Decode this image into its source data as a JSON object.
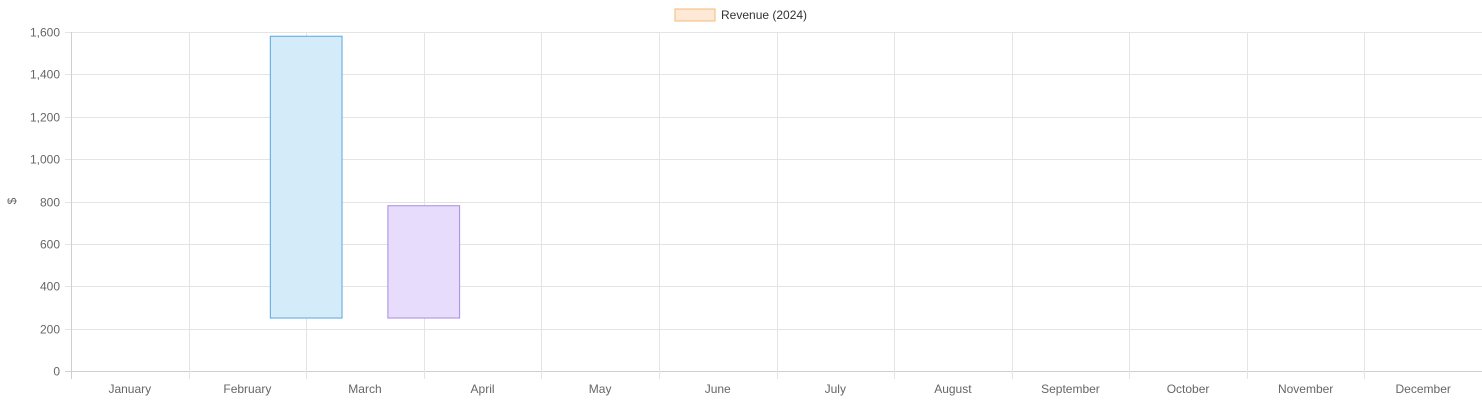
{
  "chart_data": {
    "type": "bar",
    "legend": {
      "label": "Revenue (2024)",
      "position": "top",
      "fill": "#fde9d6",
      "stroke": "#f5b97a"
    },
    "ylabel": "$",
    "ylim": [
      0,
      1600
    ],
    "ytick_step": 200,
    "ytick_labels": [
      "0",
      "200",
      "400",
      "600",
      "800",
      "1,000",
      "1,200",
      "1,400",
      "1,600"
    ],
    "grid": true,
    "categories": [
      "January",
      "February",
      "March",
      "April",
      "May",
      "June",
      "July",
      "August",
      "September",
      "October",
      "November",
      "December"
    ],
    "bars": [
      {
        "category": "March",
        "from": 250,
        "to": 1580,
        "fill": "#d4ebf9",
        "stroke": "#5aa7e0"
      },
      {
        "category": "April",
        "from": 250,
        "to": 780,
        "fill": "#e8dcfc",
        "stroke": "#a98be0"
      }
    ]
  }
}
